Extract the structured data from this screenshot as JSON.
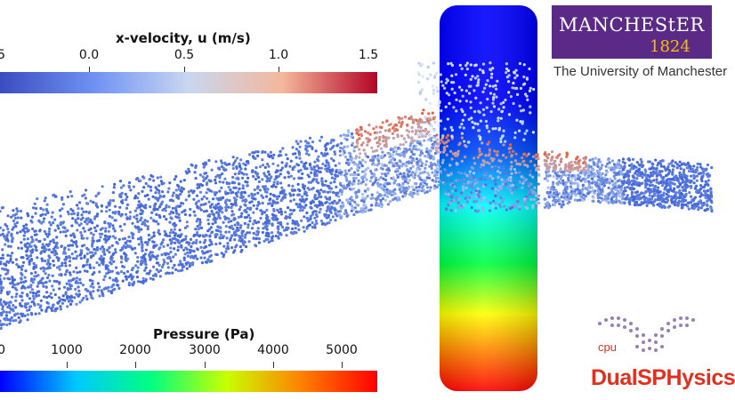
{
  "velocity_colorbar": {
    "title": "x-velocity, u (m/s)",
    "ticks": [
      "5",
      "0.0",
      "0.5",
      "1.0",
      "1.5"
    ],
    "colors": [
      "#3b4cc0",
      "#6f92f3",
      "#c9d7f0",
      "#f4b79b",
      "#b40426"
    ]
  },
  "pressure_colorbar": {
    "title": "Pressure (Pa)",
    "ticks": [
      "0",
      "1000",
      "2000",
      "3000",
      "4000",
      "5000"
    ],
    "colors": [
      "#0000ff",
      "#00c8ff",
      "#00ff80",
      "#c8ff00",
      "#ff8000",
      "#ff0000"
    ]
  },
  "logos": {
    "manchester_word": "MANCHEStER",
    "manchester_year": "1824",
    "university_line": "The University of Manchester",
    "cpu_label": "cpu",
    "dualsphysics": "DualSPHysics"
  },
  "scene": {
    "cylinder_gradient": [
      "#ff0000",
      "#ff7f00",
      "#ffff00",
      "#00ff40",
      "#00ffff",
      "#0030ff",
      "#0000ff"
    ],
    "particle_colors": {
      "slow": "#3f63d8",
      "mid": "#aec6f0",
      "fast": "#e8613a"
    }
  }
}
